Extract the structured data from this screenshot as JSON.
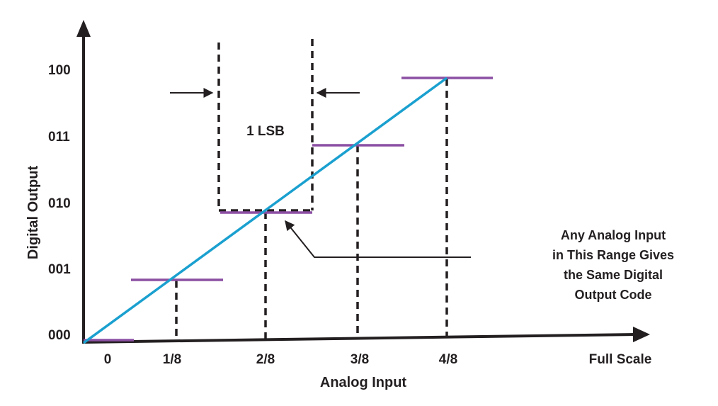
{
  "colors": {
    "axis": "#231f20",
    "ramp": "#1aa0cf",
    "step": "#8c4fa3",
    "dash": "#231f20"
  },
  "y_axis": {
    "title": "Digital Output",
    "codes": [
      "000",
      "001",
      "010",
      "011",
      "100"
    ]
  },
  "x_axis": {
    "title": "Analog Input",
    "ticks": [
      "0",
      "1/8",
      "2/8",
      "3/8",
      "4/8"
    ],
    "end_label": "Full Scale"
  },
  "lsb_label": "1 LSB",
  "annotation": {
    "lines": [
      "Any Analog Input",
      "in This Range Gives",
      "the Same Digital",
      "Output Code"
    ]
  }
}
